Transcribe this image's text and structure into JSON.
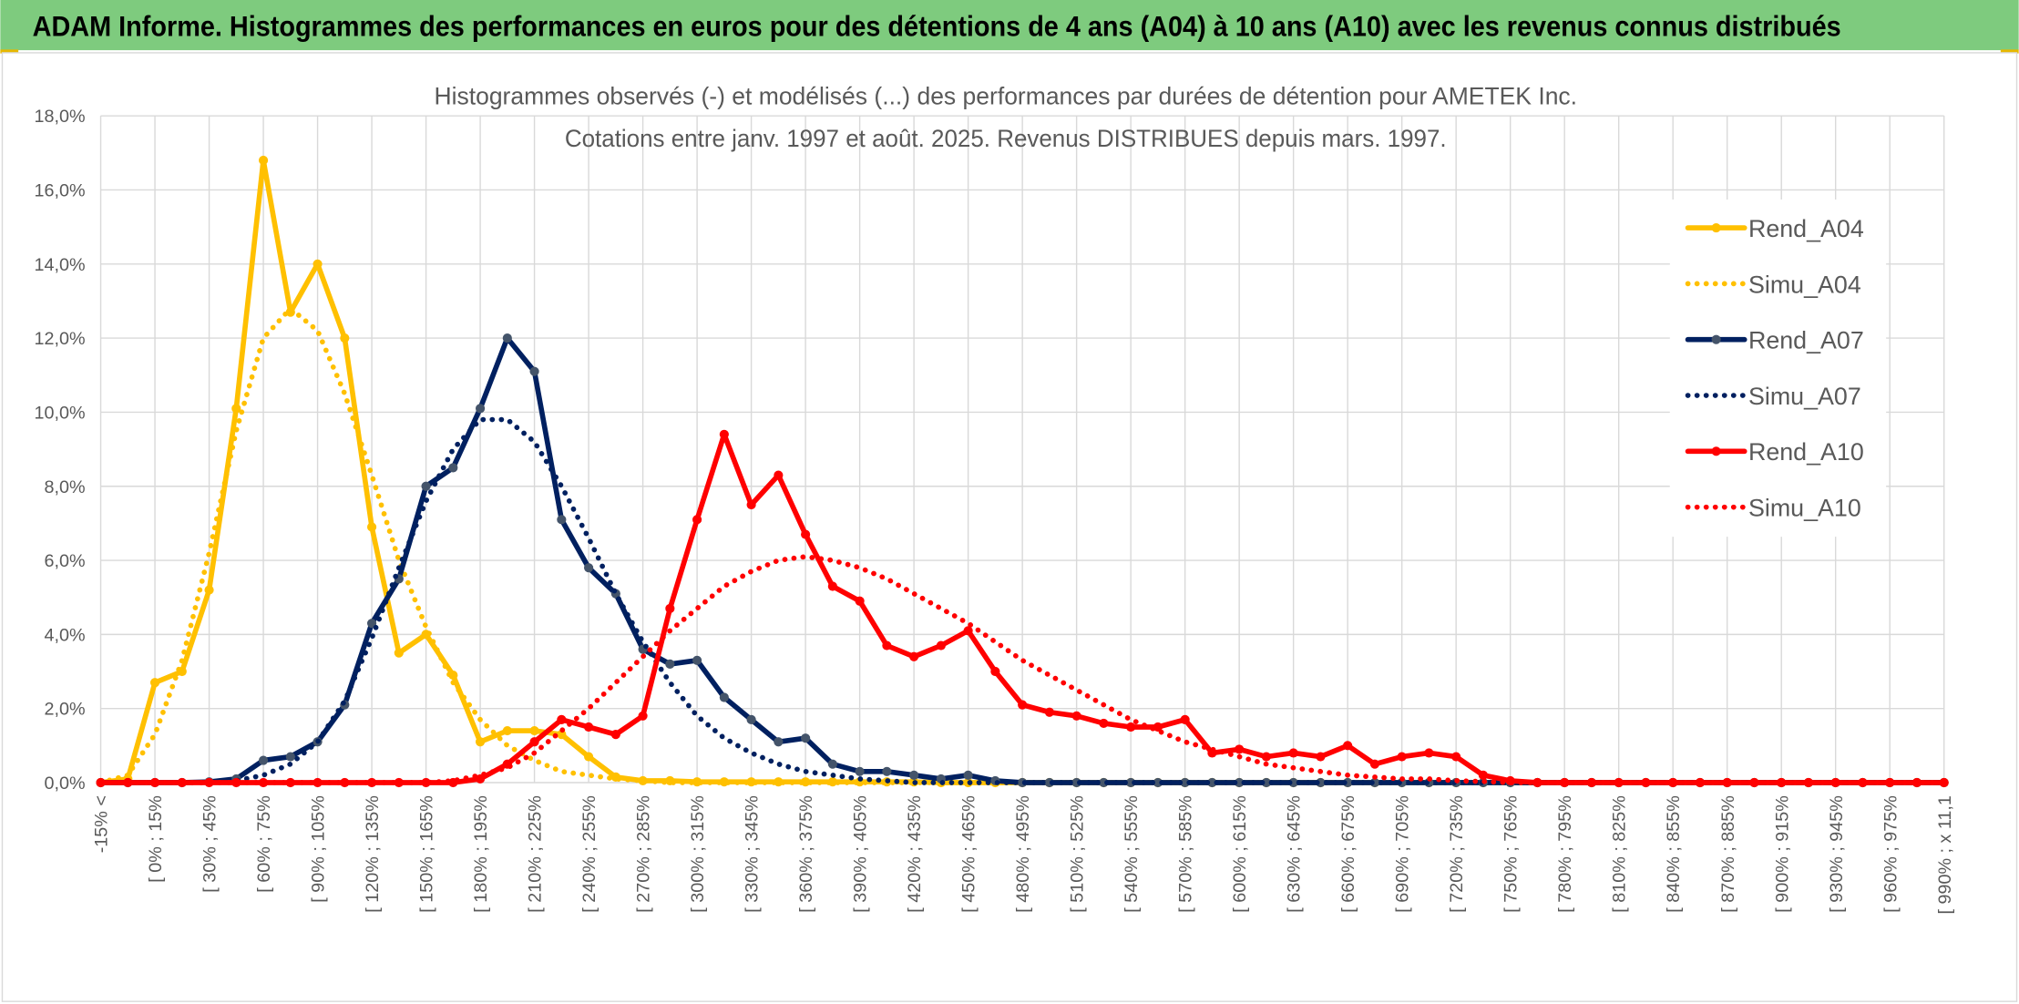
{
  "banner_title": "ADAM Informe. Histogrammes des performances en euros pour des détentions de 4 ans (A04) à 10 ans (A10) avec les revenus connus distribués",
  "chart_data": {
    "type": "line",
    "title": "Histogrammes observés (-) et modélisés (...) des performances par durées de détention pour AMETEK Inc.",
    "subtitle": "Cotations entre janv. 1997 et août. 2025. Revenus DISTRIBUES depuis mars. 1997.",
    "categories": [
      "-15% <",
      null,
      "[ 0% ; 15%",
      null,
      "[ 30% ; 45%",
      null,
      "[ 60% ; 75%",
      null,
      "[ 90% ; 105%",
      null,
      "[ 120% ; 135%",
      null,
      "[ 150% ; 165%",
      null,
      "[ 180% ; 195%",
      null,
      "[ 210% ; 225%",
      null,
      "[ 240% ; 255%",
      null,
      "[ 270% ; 285%",
      null,
      "[ 300% ; 315%",
      null,
      "[ 330% ; 345%",
      null,
      "[ 360% ; 375%",
      null,
      "[ 390% ; 405%",
      null,
      "[ 420% ; 435%",
      null,
      "[ 450% ; 465%",
      null,
      "[ 480% ; 495%",
      null,
      "[ 510% ; 525%",
      null,
      "[ 540% ; 555%",
      null,
      "[ 570% ; 585%",
      null,
      "[ 600% ; 615%",
      null,
      "[ 630% ; 645%",
      null,
      "[ 660% ; 675%",
      null,
      "[ 690% ; 705%",
      null,
      "[ 720% ; 735%",
      null,
      "[ 750% ; 765%",
      null,
      "[ 780% ; 795%",
      null,
      "[ 810% ; 825%",
      null,
      "[ 840% ; 855%",
      null,
      "[ 870% ; 885%",
      null,
      "[ 900% ; 915%",
      null,
      "[ 930% ; 945%",
      null,
      "[ 960% ; 975%",
      null,
      "[ 990% ; x 11,1"
    ],
    "series": [
      {
        "name": "Rend_A04",
        "color": "#ffc000",
        "line_style": "solid",
        "markers": true,
        "values": [
          0,
          0.1,
          2.7,
          3.0,
          5.2,
          10.1,
          16.8,
          12.7,
          14.0,
          12.0,
          6.9,
          3.5,
          4.0,
          2.9,
          1.1,
          1.4,
          1.4,
          1.3,
          0.7,
          0.15,
          0.05,
          0.05,
          0.02,
          0.02,
          0.02,
          0.02,
          0.02,
          0.02,
          0.02,
          0.02,
          0.02,
          0,
          0,
          0,
          0,
          0,
          0,
          0,
          0,
          0,
          0,
          0,
          0,
          0,
          0,
          0,
          0,
          0,
          0,
          0,
          0,
          0,
          0,
          0,
          0,
          0,
          0,
          0,
          0,
          0,
          0,
          0,
          0,
          0,
          0,
          0,
          0,
          0,
          0
        ]
      },
      {
        "name": "Simu_A04",
        "color": "#ffc000",
        "line_style": "dotted",
        "markers": false,
        "values": [
          0,
          0.2,
          1.3,
          3.3,
          6.2,
          9.5,
          12.0,
          12.8,
          12.2,
          10.5,
          8.3,
          6.0,
          4.2,
          2.7,
          1.7,
          1.0,
          0.6,
          0.3,
          0.2,
          0.1,
          0.05,
          0,
          0,
          0,
          0,
          0,
          0,
          0,
          0,
          0,
          0,
          0,
          0,
          0,
          0,
          0,
          0,
          0,
          0,
          0,
          0,
          0,
          0,
          0,
          0,
          0,
          0,
          0,
          0,
          0,
          0,
          0,
          0,
          0,
          0,
          0,
          0,
          0,
          0,
          0,
          0,
          0,
          0,
          0,
          0,
          0,
          0,
          0,
          0
        ]
      },
      {
        "name": "Rend_A07",
        "color": "#002060",
        "marker_color": "#44546a",
        "line_style": "solid",
        "markers": true,
        "values": [
          0,
          0,
          0,
          0,
          0.02,
          0.1,
          0.6,
          0.7,
          1.1,
          2.1,
          4.3,
          5.5,
          8.0,
          8.5,
          10.1,
          12.0,
          11.1,
          7.1,
          5.8,
          5.1,
          3.6,
          3.2,
          3.3,
          2.3,
          1.7,
          1.1,
          1.2,
          0.5,
          0.3,
          0.3,
          0.2,
          0.1,
          0.2,
          0.05,
          0,
          0,
          0,
          0,
          0,
          0,
          0,
          0,
          0,
          0,
          0,
          0,
          0,
          0,
          0,
          0,
          0,
          0,
          0,
          0,
          0,
          0,
          0,
          0,
          0,
          0,
          0,
          0,
          0,
          0,
          0,
          0,
          0,
          0,
          0
        ]
      },
      {
        "name": "Simu_A07",
        "color": "#002060",
        "line_style": "dotted",
        "markers": false,
        "values": [
          0,
          0,
          0,
          0,
          0,
          0.05,
          0.2,
          0.5,
          1.1,
          2.2,
          3.9,
          5.8,
          7.6,
          9.0,
          9.8,
          9.8,
          9.2,
          8.0,
          6.6,
          5.1,
          3.8,
          2.7,
          1.8,
          1.2,
          0.8,
          0.5,
          0.3,
          0.2,
          0.1,
          0.05,
          0,
          0,
          0,
          0,
          0,
          0,
          0,
          0,
          0,
          0,
          0,
          0,
          0,
          0,
          0,
          0,
          0,
          0,
          0,
          0,
          0,
          0,
          0,
          0,
          0,
          0,
          0,
          0,
          0,
          0,
          0,
          0,
          0,
          0,
          0,
          0,
          0,
          0,
          0
        ]
      },
      {
        "name": "Rend_A10",
        "color": "#ff0000",
        "line_style": "solid",
        "markers": true,
        "values": [
          0,
          0,
          0,
          0,
          0,
          0,
          0,
          0,
          0,
          0,
          0,
          0,
          0,
          0,
          0.1,
          0.5,
          1.1,
          1.7,
          1.5,
          1.3,
          1.8,
          4.7,
          7.1,
          9.4,
          7.5,
          8.3,
          6.7,
          5.3,
          4.9,
          3.7,
          3.4,
          3.7,
          4.1,
          3.0,
          2.1,
          1.9,
          1.8,
          1.6,
          1.5,
          1.5,
          1.7,
          0.8,
          0.9,
          0.7,
          0.8,
          0.7,
          1.0,
          0.5,
          0.7,
          0.8,
          0.7,
          0.2,
          0.05,
          0,
          0,
          0,
          0,
          0,
          0,
          0,
          0,
          0,
          0,
          0,
          0,
          0,
          0,
          0,
          0
        ]
      },
      {
        "name": "Simu_A10",
        "color": "#ff0000",
        "line_style": "dotted",
        "markers": false,
        "values": [
          0,
          0,
          0,
          0,
          0,
          0,
          0,
          0,
          0,
          0,
          0,
          0,
          0,
          0.05,
          0.2,
          0.4,
          0.8,
          1.4,
          2.0,
          2.7,
          3.4,
          4.1,
          4.7,
          5.3,
          5.7,
          6.0,
          6.1,
          6.0,
          5.8,
          5.5,
          5.1,
          4.7,
          4.3,
          3.8,
          3.3,
          2.9,
          2.5,
          2.1,
          1.7,
          1.4,
          1.1,
          0.9,
          0.7,
          0.5,
          0.4,
          0.3,
          0.2,
          0.15,
          0.1,
          0.1,
          0.05,
          0.03,
          0,
          0,
          0,
          0,
          0,
          0,
          0,
          0,
          0,
          0,
          0,
          0,
          0,
          0,
          0,
          0,
          0
        ]
      }
    ],
    "ylim": [
      0,
      18
    ],
    "yticks": [
      {
        "value": 0,
        "label": "0,0%"
      },
      {
        "value": 2,
        "label": "2,0%"
      },
      {
        "value": 4,
        "label": "4,0%"
      },
      {
        "value": 6,
        "label": "6,0%"
      },
      {
        "value": 8,
        "label": "8,0%"
      },
      {
        "value": 10,
        "label": "10,0%"
      },
      {
        "value": 12,
        "label": "12,0%"
      },
      {
        "value": 14,
        "label": "14,0%"
      },
      {
        "value": 16,
        "label": "16,0%"
      },
      {
        "value": 18,
        "label": "18,0%"
      }
    ],
    "grid": true,
    "legend": "right"
  }
}
